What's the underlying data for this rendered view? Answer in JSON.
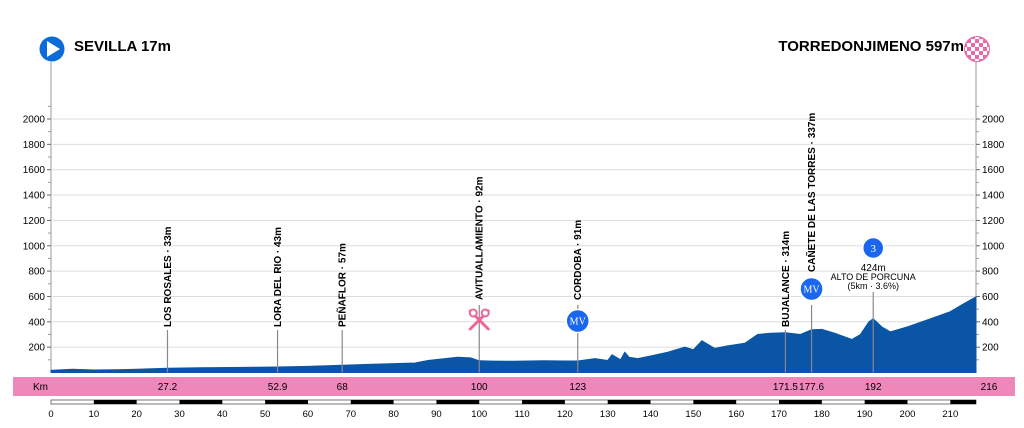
{
  "start": {
    "name": "SEVILLA",
    "elevation": "17m"
  },
  "finish": {
    "name": "TORREDONJIMENO",
    "elevation": "597m"
  },
  "colors": {
    "profile": "#0b55a6",
    "band": "#ee88bb",
    "marker": "#1a66ee",
    "grid": "#dddddd",
    "feed": "#ee6699"
  },
  "icons": {
    "start": "play-arrow-icon",
    "finish": "checkered-flag-icon",
    "feed": "scissors-feed-icon"
  },
  "chart_data": {
    "type": "area",
    "xlabel": "Km",
    "xlim": [
      0,
      216
    ],
    "ylim": [
      0,
      2000
    ],
    "y_ticks": [
      200,
      400,
      600,
      800,
      1000,
      1200,
      1400,
      1600,
      1800,
      2000
    ],
    "x_ticks": [
      0,
      10,
      20,
      30,
      40,
      50,
      60,
      70,
      80,
      90,
      100,
      110,
      120,
      130,
      140,
      150,
      160,
      170,
      180,
      190,
      200,
      210
    ],
    "grid": true,
    "profile": {
      "x": [
        0,
        5,
        10,
        15,
        20,
        27.2,
        35,
        45,
        52.9,
        60,
        68,
        75,
        85,
        88,
        92,
        95,
        98,
        100,
        103,
        108,
        115,
        120,
        123,
        127,
        130,
        131,
        133,
        134,
        135,
        137,
        140,
        144,
        148,
        150,
        152,
        155,
        158,
        162,
        165,
        168,
        171.5,
        175,
        177.6,
        180,
        183,
        187,
        189,
        191,
        192,
        194,
        196,
        200,
        205,
        210,
        213,
        216
      ],
      "y": [
        17,
        25,
        20,
        22,
        25,
        33,
        37,
        40,
        43,
        48,
        57,
        65,
        75,
        95,
        110,
        120,
        115,
        92,
        90,
        88,
        92,
        91,
        91,
        110,
        95,
        140,
        100,
        160,
        120,
        110,
        130,
        160,
        200,
        180,
        250,
        190,
        210,
        230,
        300,
        310,
        314,
        300,
        337,
        340,
        310,
        260,
        300,
        400,
        424,
        360,
        320,
        360,
        420,
        480,
        540,
        597
      ]
    },
    "labels": [
      {
        "km": 27.2,
        "km_label": "27.2",
        "text": "LOS ROSALES · 33m",
        "elev": 33
      },
      {
        "km": 52.9,
        "km_label": "52.9",
        "text": "LORA DEL RIO · 43m",
        "elev": 43
      },
      {
        "km": 68,
        "km_label": "68",
        "text": "PEÑAFLOR · 57m",
        "elev": 57
      },
      {
        "km": 100,
        "km_label": "100",
        "text": "AVITUALLAMIENTO · 92m",
        "elev": 92,
        "icon": "feed"
      },
      {
        "km": 123,
        "km_label": "123",
        "text": "CORDOBA · 91m",
        "elev": 91,
        "icon": "mv"
      },
      {
        "km": 171.5,
        "km_label": "171.5",
        "text": "BUJALANCE · 314m",
        "elev": 314
      },
      {
        "km": 177.6,
        "km_label": "177.6",
        "text": "CAÑETE DE LAS TORRES · 337m",
        "elev": 337,
        "icon": "mv"
      }
    ],
    "km_end_label": "216",
    "climb": {
      "km": 192,
      "km_label": "192",
      "category": "3",
      "elev_label": "424m",
      "name": "ALTO DE PORCUNA",
      "detail": "(5km · 3.6%)",
      "elev": 424
    },
    "mv_label": "MV"
  }
}
